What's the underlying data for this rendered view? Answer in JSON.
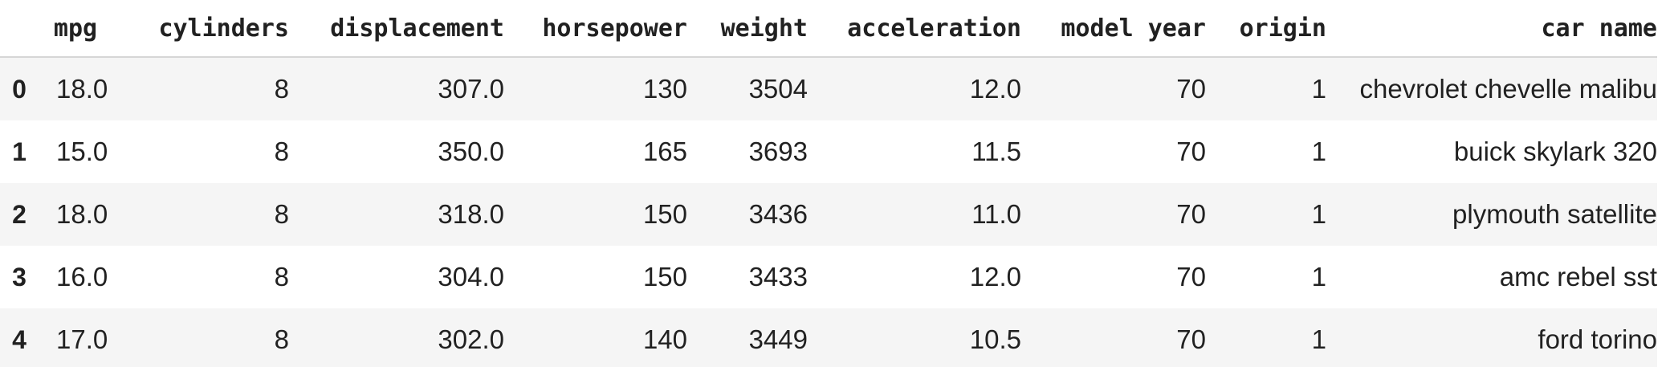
{
  "table": {
    "columns": [
      "",
      "mpg",
      "cylinders",
      "displacement",
      "horsepower",
      "weight",
      "acceleration",
      "model year",
      "origin",
      "car name"
    ],
    "rows": [
      {
        "index": "0",
        "cells": [
          "18.0",
          "8",
          "307.0",
          "130",
          "3504",
          "12.0",
          "70",
          "1",
          "chevrolet chevelle malibu"
        ]
      },
      {
        "index": "1",
        "cells": [
          "15.0",
          "8",
          "350.0",
          "165",
          "3693",
          "11.5",
          "70",
          "1",
          "buick skylark 320"
        ]
      },
      {
        "index": "2",
        "cells": [
          "18.0",
          "8",
          "318.0",
          "150",
          "3436",
          "11.0",
          "70",
          "1",
          "plymouth satellite"
        ]
      },
      {
        "index": "3",
        "cells": [
          "16.0",
          "8",
          "304.0",
          "150",
          "3433",
          "12.0",
          "70",
          "1",
          "amc rebel sst"
        ]
      },
      {
        "index": "4",
        "cells": [
          "17.0",
          "8",
          "302.0",
          "140",
          "3449",
          "10.5",
          "70",
          "1",
          "ford torino"
        ]
      }
    ]
  },
  "colors": {
    "stripe": "#f5f5f5",
    "header_rule": "#d6d6d6",
    "text": "#212121"
  }
}
